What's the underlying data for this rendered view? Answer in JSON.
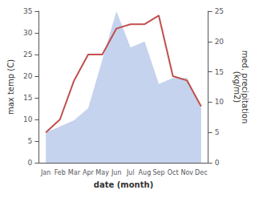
{
  "chart_data": {
    "type": "line",
    "categories": [
      "Jan",
      "Feb",
      "Mar",
      "Apr",
      "May",
      "Jun",
      "Jul",
      "Aug",
      "Sep",
      "Oct",
      "Nov",
      "Dec"
    ],
    "series": [
      {
        "type": "line",
        "color": "#c0504d",
        "values": [
          7,
          10,
          19,
          25,
          25,
          31,
          32,
          32,
          34,
          20,
          19,
          13
        ]
      },
      {
        "type": "area",
        "axis": "y2",
        "color": "#c5d3ee",
        "values": [
          5,
          6,
          7,
          9,
          17,
          25,
          19,
          20,
          13,
          14,
          14,
          9
        ]
      }
    ],
    "xlabel": "date (month)",
    "ylabel": "max temp (C)",
    "y2label": "med. precipitation\n(kg/m2)",
    "ylim": [
      0,
      35
    ],
    "yticks": [
      0,
      5,
      10,
      15,
      20,
      25,
      30,
      35
    ],
    "y2lim": [
      0,
      25
    ],
    "y2ticks": [
      0,
      5,
      10,
      15,
      20,
      25
    ],
    "grid": false
  }
}
